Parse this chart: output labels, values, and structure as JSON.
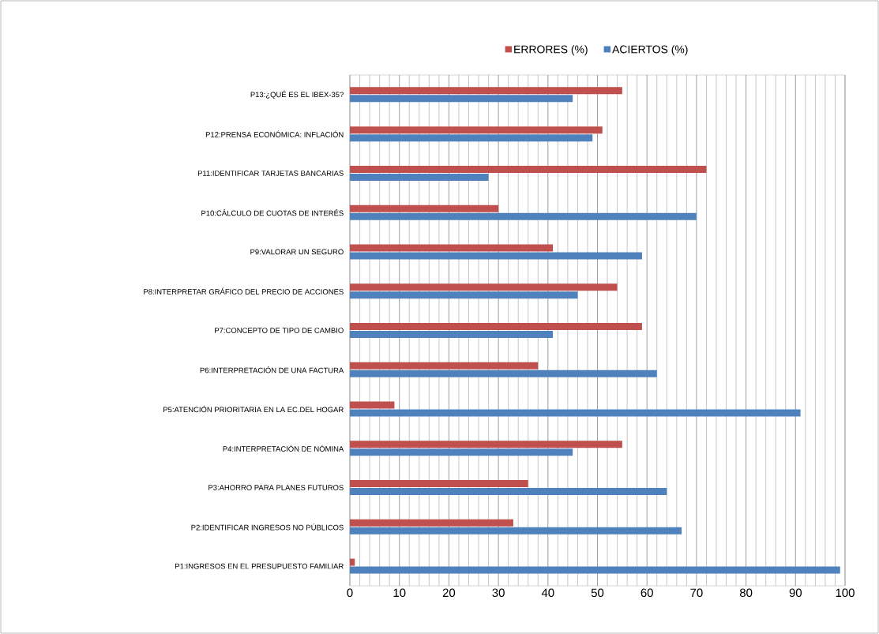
{
  "chart_data": {
    "type": "bar",
    "orientation": "horizontal",
    "categories": [
      "P13:¿QUÉ ES EL IBEX-35?",
      "P12:PRENSA ECONÓMICA: INFLACIÓN",
      "P11:IDENTIFICAR TARJETAS BANCARIAS",
      "P10:CÁLCULO DE CUOTAS DE INTERÉS",
      "P9:VALORAR UN SEGURO",
      "P8:INTERPRETAR GRÁFICO DEL PRECIO DE ACCIONES",
      "P7:CONCEPTO DE TIPO DE CAMBIO",
      "P6:INTERPRETACIÓN DE UNA FACTURA",
      "P5:ATENCIÓN PRIORITARIA EN LA EC.DEL HOGAR",
      "P4:INTERPRETACIÓN DE NÓMINA",
      "P3:AHORRO PARA PLANES FUTUROS",
      "P2:IDENTIFICAR INGRESOS NO PÚBLICOS",
      "P1:INGRESOS EN EL PRESUPUESTO FAMILIAR"
    ],
    "series": [
      {
        "name": "ERRORES (%)",
        "color": "#c0504d",
        "values": [
          55,
          51,
          72,
          30,
          41,
          54,
          59,
          38,
          9,
          55,
          36,
          33,
          1
        ]
      },
      {
        "name": "ACIERTOS (%)",
        "color": "#4f81bd",
        "values": [
          45,
          49,
          28,
          70,
          59,
          46,
          41,
          62,
          91,
          45,
          64,
          67,
          99
        ]
      }
    ],
    "xlim": [
      0,
      100
    ],
    "xticks": [
      0,
      10,
      20,
      30,
      40,
      50,
      60,
      70,
      80,
      90,
      100
    ],
    "grid": "x",
    "legend": "top"
  }
}
